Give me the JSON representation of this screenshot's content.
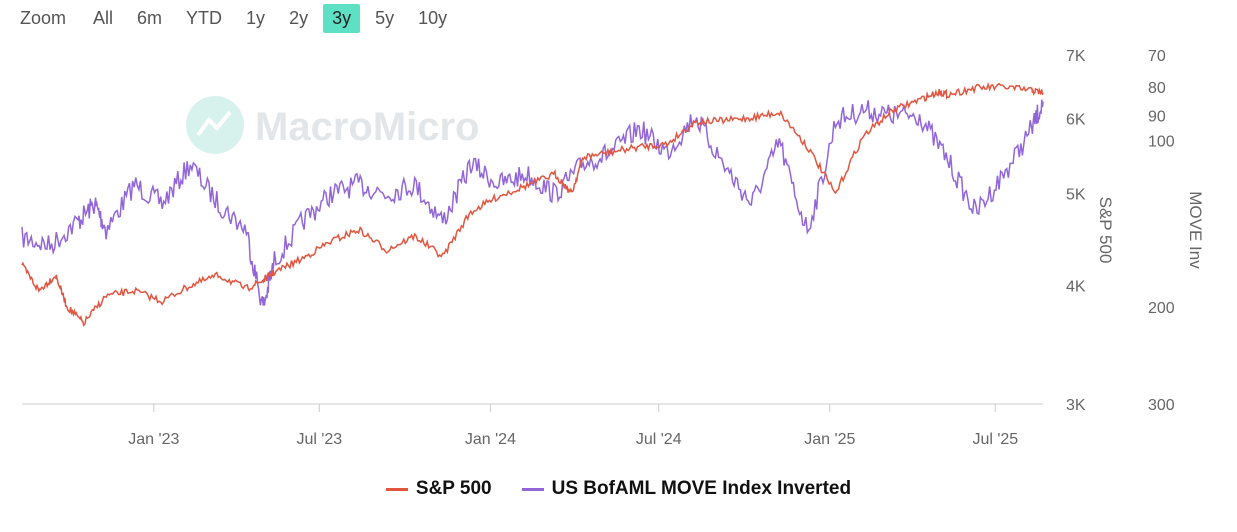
{
  "range_selector": {
    "label": "Zoom",
    "buttons": [
      "All",
      "6m",
      "YTD",
      "1y",
      "2y",
      "3y",
      "5y",
      "10y"
    ],
    "active": "3y"
  },
  "watermark": "MacroMicro",
  "colors": {
    "sp500": "#e2553f",
    "move": "#9266d8",
    "active_button": "#5ee0c4"
  },
  "chart_data": {
    "type": "line",
    "x_tick_labels": [
      "Jan '23",
      "Jul '23",
      "Jan '24",
      "Jul '24",
      "Jan '25",
      "Jul '25"
    ],
    "x_range": [
      "2022-08",
      "2025-08"
    ],
    "left_axis": {
      "title": "S&P 500",
      "scale": "log",
      "ticks": [
        "7K",
        "6K",
        "5K",
        "4K",
        "3K"
      ],
      "range": [
        3000,
        7000
      ]
    },
    "right_axis": {
      "title": "MOVE Inv",
      "scale": "inverted-log",
      "ticks": [
        "70",
        "80",
        "90",
        "100",
        "200",
        "300"
      ],
      "range": [
        300,
        70
      ]
    },
    "series": [
      {
        "name": "S&P 500",
        "axis": "left",
        "x": [
          0,
          0.6,
          1.2,
          1.6,
          2.2,
          3,
          4,
          5,
          6,
          7,
          8,
          8.6,
          9,
          10,
          11,
          12,
          13,
          14,
          15,
          16,
          17,
          18,
          19,
          19.6,
          20,
          21,
          22,
          23,
          24,
          25,
          26,
          27,
          28,
          29,
          30,
          31,
          32,
          32.7,
          33,
          34,
          35,
          36,
          36.4
        ],
        "values": [
          4200,
          3950,
          4100,
          3800,
          3650,
          3900,
          3950,
          3850,
          4000,
          4100,
          3970,
          4050,
          4130,
          4270,
          4450,
          4580,
          4360,
          4510,
          4290,
          4780,
          4970,
          5100,
          5240,
          5000,
          5460,
          5530,
          5600,
          5640,
          5950,
          5970,
          6010,
          6090,
          5600,
          4990,
          5750,
          6110,
          6280,
          6400,
          6360,
          6460,
          6480,
          6420,
          6390
        ]
      },
      {
        "name": "US BofAML MOVE Index Inverted",
        "axis": "right",
        "x": [
          0,
          1,
          2,
          2.6,
          3,
          4,
          5,
          6,
          7,
          8,
          8.6,
          9,
          10,
          11,
          12,
          13,
          14,
          15,
          16,
          17,
          18,
          19,
          20,
          21,
          22,
          23,
          24,
          25,
          26,
          27,
          28,
          29,
          30,
          31,
          32,
          33,
          34,
          35,
          36,
          36.4
        ],
        "values": [
          150,
          155,
          140,
          130,
          145,
          120,
          130,
          110,
          130,
          145,
          200,
          165,
          140,
          125,
          120,
          125,
          120,
          140,
          110,
          120,
          115,
          125,
          110,
          105,
          95,
          105,
          90,
          110,
          130,
          100,
          145,
          92,
          88,
          90,
          90,
          108,
          135,
          115,
          95,
          85
        ]
      }
    ]
  }
}
